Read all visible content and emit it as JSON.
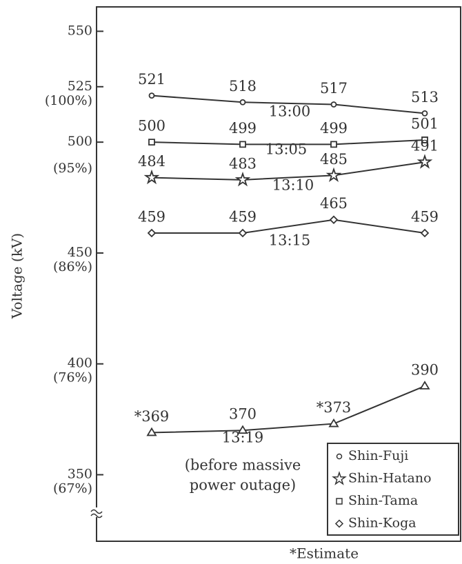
{
  "chart_data": {
    "type": "line",
    "y_label": "Voltage (kV)",
    "footnote": "*Estimate",
    "categories": [
      null,
      null,
      null,
      null
    ],
    "ylim": [
      320,
      561
    ],
    "yticks": [
      {
        "value": 350,
        "label": "350 (67%)"
      },
      {
        "value": 400,
        "label": "400 (76%)"
      },
      {
        "value": 450,
        "label": "450 (86%)"
      },
      {
        "value": 500,
        "label": "500 (95%)"
      },
      {
        "value": 525,
        "label": "525 (100%)"
      },
      550
    ],
    "series": [
      {
        "name": "13:00",
        "color": "#333333",
        "marker": "circle",
        "values": [
          521,
          518,
          517,
          513
        ]
      },
      {
        "name": "13:05",
        "color": "#333333",
        "marker": "square",
        "values": [
          500,
          499,
          499,
          501
        ]
      },
      {
        "name": "13:10",
        "color": "#333333",
        "marker": "star",
        "values": [
          484,
          483,
          485,
          491
        ]
      },
      {
        "name": "13:15",
        "color": "#333333",
        "marker": "diamond",
        "values": [
          459,
          459,
          465,
          459
        ]
      },
      {
        "name": "13:19",
        "color": "#333333",
        "marker": "triangle",
        "values": [
          369,
          370,
          373,
          390
        ],
        "value_labels": [
          "*369",
          "370",
          "*373",
          "390"
        ],
        "annotation": [
          "(before massive",
          "power outage)"
        ]
      }
    ],
    "legend": [
      {
        "label": "Shin-Fuji",
        "marker": "circle"
      },
      {
        "label": "Shin-Hatano",
        "marker": "star"
      },
      {
        "label": "Shin-Tama",
        "marker": "square"
      },
      {
        "label": "Shin-Koga",
        "marker": "diamond"
      }
    ]
  }
}
